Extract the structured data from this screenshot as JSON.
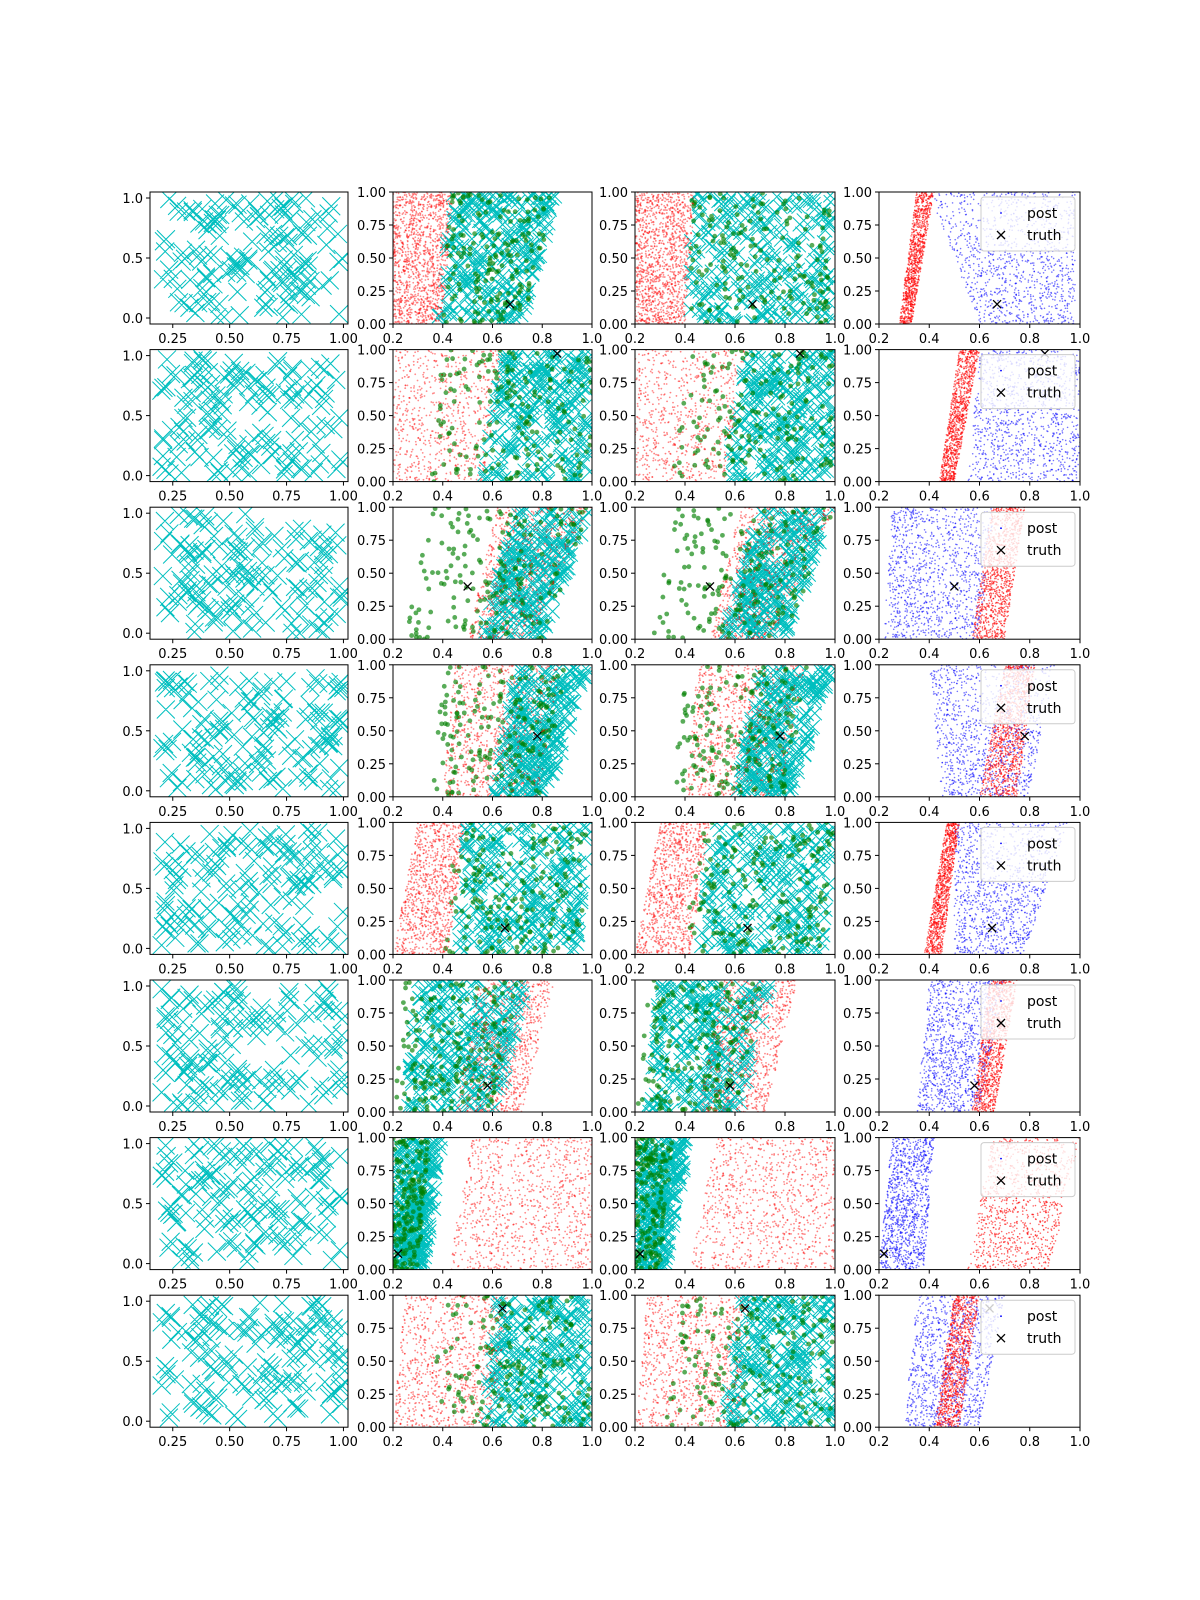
{
  "figure": {
    "layout": {
      "rows": 8,
      "cols": 4
    },
    "colors": {
      "prior": "#00bfbf",
      "post": "#0000ff",
      "red_samples": "#ff0000",
      "green_samples": "#008000",
      "truth": "#000000"
    },
    "legend": {
      "post_label": "post",
      "truth_label": "truth"
    },
    "axes": {
      "prior": {
        "xlim": [
          0.15,
          1.02
        ],
        "ylim": [
          -0.05,
          1.05
        ],
        "xticks": [
          "0.25",
          "0.50",
          "0.75",
          "1.00"
        ],
        "xtick_values": [
          0.25,
          0.5,
          0.75,
          1.0
        ],
        "yticks": [
          "0.0",
          "0.5",
          "1.0"
        ],
        "ytick_values": [
          0.0,
          0.5,
          1.0
        ]
      },
      "posterior": {
        "xlim": [
          0.2,
          1.0
        ],
        "ylim": [
          0.0,
          1.0
        ],
        "xticks": [
          "0.2",
          "0.4",
          "0.6",
          "0.8",
          "1.0"
        ],
        "xtick_values": [
          0.2,
          0.4,
          0.6,
          0.8,
          1.0
        ],
        "yticks": [
          "0.00",
          "0.25",
          "0.50",
          "0.75",
          "1.00"
        ],
        "ytick_values": [
          0.0,
          0.25,
          0.5,
          0.75,
          1.0
        ]
      }
    }
  },
  "chart_data": [
    {
      "row": 1,
      "type": "scatter",
      "truth": [
        0.67,
        0.15
      ],
      "red_band": {
        "x_at_y0": [
          0.2,
          0.4
        ],
        "x_at_y1": [
          0.2,
          0.44
        ],
        "density": 1.0
      },
      "cyan_band": {
        "x_at_y0": [
          0.38,
          0.72
        ],
        "x_at_y1": [
          0.44,
          0.86
        ]
      },
      "green_band": {
        "x_at_y0": [
          0.38,
          0.72
        ],
        "x_at_y1": [
          0.44,
          0.86
        ]
      },
      "panel3_cyan_band": {
        "x_at_y0": [
          0.42,
          0.99
        ],
        "x_at_y1": [
          0.42,
          0.99
        ]
      },
      "panel3_green_band": {
        "x_at_y0": [
          0.42,
          0.98
        ],
        "x_at_y1": [
          0.42,
          0.98
        ]
      },
      "post_band": {
        "x_at_y0": [
          0.6,
          0.98
        ],
        "x_at_y1": [
          0.4,
          0.98
        ]
      },
      "post_red_band": {
        "x_at_y0": [
          0.28,
          0.33
        ],
        "x_at_y1": [
          0.35,
          0.42
        ]
      },
      "legend": true
    },
    {
      "row": 2,
      "type": "scatter",
      "truth": [
        0.86,
        0.97
      ],
      "red_band": {
        "x_at_y0": [
          0.2,
          0.56
        ],
        "x_at_y1": [
          0.2,
          0.65
        ],
        "density": 0.55
      },
      "cyan_band": {
        "x_at_y0": [
          0.55,
          1.0
        ],
        "x_at_y1": [
          0.65,
          1.0
        ]
      },
      "green_band": {
        "x_at_y0": [
          0.35,
          1.0
        ],
        "x_at_y1": [
          0.4,
          1.0
        ]
      },
      "post_band": {
        "x_at_y0": [
          0.55,
          1.0
        ],
        "x_at_y1": [
          0.6,
          1.0
        ]
      },
      "post_red_band": {
        "x_at_y0": [
          0.44,
          0.5
        ],
        "x_at_y1": [
          0.52,
          0.6
        ]
      },
      "legend": true
    },
    {
      "row": 3,
      "type": "scatter",
      "truth": [
        0.5,
        0.4
      ],
      "red_band": {
        "x_at_y0": [
          0.5,
          0.75
        ],
        "x_at_y1": [
          0.62,
          1.0
        ],
        "density": 0.75
      },
      "cyan_band": {
        "x_at_y0": [
          0.55,
          0.8
        ],
        "x_at_y1": [
          0.7,
          1.0
        ]
      },
      "green_band": {
        "x_at_y0": [
          0.25,
          0.8
        ],
        "x_at_y1": [
          0.35,
          1.0
        ]
      },
      "post_band": {
        "x_at_y0": [
          0.22,
          0.6
        ],
        "x_at_y1": [
          0.25,
          0.66
        ]
      },
      "post_red_band": {
        "x_at_y0": [
          0.57,
          0.7
        ],
        "x_at_y1": [
          0.65,
          0.78
        ]
      },
      "legend": true
    },
    {
      "row": 4,
      "type": "scatter",
      "truth": [
        0.78,
        0.46
      ],
      "red_band": {
        "x_at_y0": [
          0.4,
          0.78
        ],
        "x_at_y1": [
          0.45,
          0.88
        ],
        "density": 0.75
      },
      "cyan_band": {
        "x_at_y0": [
          0.6,
          0.82
        ],
        "x_at_y1": [
          0.7,
          1.0
        ]
      },
      "green_band": {
        "x_at_y0": [
          0.35,
          0.8
        ],
        "x_at_y1": [
          0.4,
          0.9
        ]
      },
      "post_band": {
        "x_at_y0": [
          0.45,
          0.8
        ],
        "x_at_y1": [
          0.4,
          0.9
        ]
      },
      "post_red_band": {
        "x_at_y0": [
          0.6,
          0.75
        ],
        "x_at_y1": [
          0.7,
          0.82
        ]
      },
      "legend": true
    },
    {
      "row": 5,
      "type": "scatter",
      "truth": [
        0.65,
        0.2
      ],
      "red_band": {
        "x_at_y0": [
          0.2,
          0.42
        ],
        "x_at_y1": [
          0.3,
          0.5
        ],
        "density": 0.75
      },
      "cyan_band": {
        "x_at_y0": [
          0.45,
          0.95
        ],
        "x_at_y1": [
          0.5,
          1.0
        ]
      },
      "green_band": {
        "x_at_y0": [
          0.4,
          0.95
        ],
        "x_at_y1": [
          0.45,
          1.0
        ]
      },
      "post_band": {
        "x_at_y0": [
          0.5,
          0.78
        ],
        "x_at_y1": [
          0.5,
          0.95
        ]
      },
      "post_red_band": {
        "x_at_y0": [
          0.38,
          0.45
        ],
        "x_at_y1": [
          0.47,
          0.52
        ]
      },
      "legend": true
    },
    {
      "row": 6,
      "type": "scatter",
      "truth": [
        0.58,
        0.2
      ],
      "red_band": {
        "x_at_y0": [
          0.45,
          0.72
        ],
        "x_at_y1": [
          0.55,
          0.85
        ],
        "density": 0.75
      },
      "cyan_band": {
        "x_at_y0": [
          0.25,
          0.62
        ],
        "x_at_y1": [
          0.3,
          0.75
        ]
      },
      "green_band": {
        "x_at_y0": [
          0.2,
          0.6
        ],
        "x_at_y1": [
          0.25,
          0.72
        ]
      },
      "post_band": {
        "x_at_y0": [
          0.35,
          0.6
        ],
        "x_at_y1": [
          0.4,
          0.7
        ]
      },
      "post_red_band": {
        "x_at_y0": [
          0.57,
          0.66
        ],
        "x_at_y1": [
          0.64,
          0.75
        ]
      },
      "legend": true
    },
    {
      "row": 7,
      "type": "scatter",
      "truth": [
        0.22,
        0.12
      ],
      "red_band": {
        "x_at_y0": [
          0.42,
          1.0
        ],
        "x_at_y1": [
          0.52,
          1.0
        ],
        "density": 0.75
      },
      "cyan_band": {
        "x_at_y0": [
          0.2,
          0.32
        ],
        "x_at_y1": [
          0.22,
          0.42
        ]
      },
      "green_band": {
        "x_at_y0": [
          0.2,
          0.3
        ],
        "x_at_y1": [
          0.2,
          0.35
        ]
      },
      "post_band": {
        "x_at_y0": [
          0.2,
          0.38
        ],
        "x_at_y1": [
          0.25,
          0.42
        ]
      },
      "post_red_band": {
        "x_at_y0": [
          0.55,
          0.88
        ],
        "x_at_y1": [
          0.65,
          1.0
        ]
      },
      "legend": true
    },
    {
      "row": 8,
      "type": "scatter",
      "truth": [
        0.64,
        0.9
      ],
      "red_band": {
        "x_at_y0": [
          0.2,
          0.62
        ],
        "x_at_y1": [
          0.25,
          0.66
        ],
        "density": 0.75
      },
      "cyan_band": {
        "x_at_y0": [
          0.56,
          1.0
        ],
        "x_at_y1": [
          0.62,
          1.0
        ]
      },
      "green_band": {
        "x_at_y0": [
          0.32,
          1.0
        ],
        "x_at_y1": [
          0.38,
          1.0
        ]
      },
      "post_band": {
        "x_at_y0": [
          0.3,
          0.6
        ],
        "x_at_y1": [
          0.35,
          0.7
        ]
      },
      "post_red_band": {
        "x_at_y0": [
          0.42,
          0.52
        ],
        "x_at_y1": [
          0.5,
          0.6
        ]
      },
      "legend": true
    }
  ]
}
